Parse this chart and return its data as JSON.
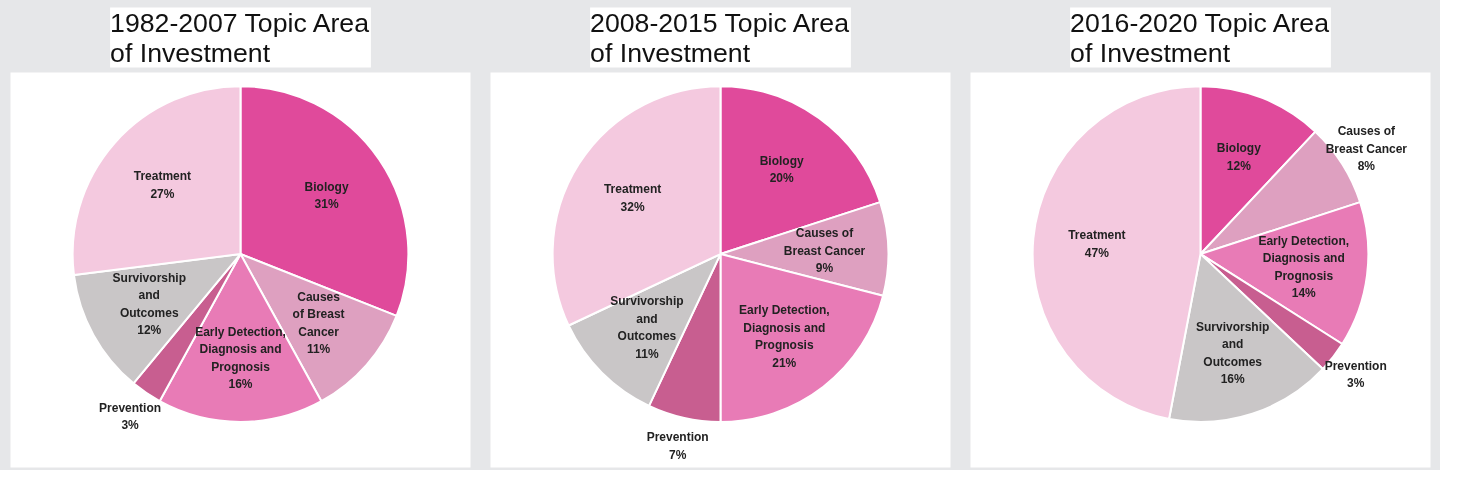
{
  "chart_data": [
    {
      "type": "pie",
      "title": "1982-2007 Topic Area of Investment",
      "categories": [
        "Biology",
        "Causes\nof Breast\nCancer",
        "Early Detection,\nDiagnosis and\nPrognosis",
        "Prevention",
        "Survivorship\nand\nOutcomes",
        "Treatment"
      ],
      "values": [
        31,
        11,
        16,
        3,
        12,
        27
      ],
      "value_labels": [
        "31%",
        "11%",
        "16%",
        "3%",
        "12%",
        "27%"
      ],
      "colors": [
        "#e04a9b",
        "#dea0c0",
        "#e87bb6",
        "#c85e90",
        "#c9c6c7",
        "#f4c9df"
      ],
      "legend": false
    },
    {
      "type": "pie",
      "title": "2008-2015 Topic Area of Investment",
      "categories": [
        "Biology",
        "Causes of\nBreast Cancer",
        "Early Detection,\nDiagnosis and\nPrognosis",
        "Prevention",
        "Survivorship\nand\nOutcomes",
        "Treatment"
      ],
      "values": [
        20,
        9,
        21,
        7,
        11,
        32
      ],
      "value_labels": [
        "20%",
        "9%",
        "21%",
        "7%",
        "11%",
        "32%"
      ],
      "colors": [
        "#e04a9b",
        "#dea0c0",
        "#e87bb6",
        "#c85e90",
        "#c9c6c7",
        "#f4c9df"
      ],
      "legend": false
    },
    {
      "type": "pie",
      "title": "2016-2020 Topic Area of Investment",
      "categories": [
        "Biology",
        "Causes of\nBreast Cancer",
        "Early Detection,\nDiagnosis and\nPrognosis",
        "Prevention",
        "Survivorship\nand\nOutcomes",
        "Treatment"
      ],
      "values": [
        12,
        8,
        14,
        3,
        16,
        47
      ],
      "value_labels": [
        "12%",
        "8%",
        "14%",
        "3%",
        "16%",
        "47%"
      ],
      "colors": [
        "#e04a9b",
        "#dea0c0",
        "#e87bb6",
        "#c85e90",
        "#c9c6c7",
        "#f4c9df"
      ],
      "legend": false
    }
  ]
}
